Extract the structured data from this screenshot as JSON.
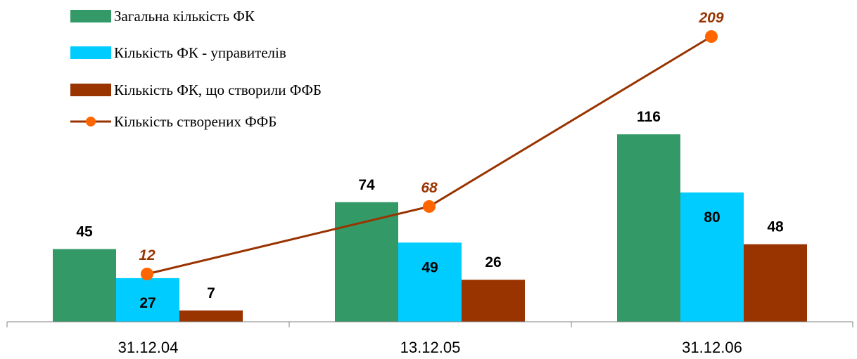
{
  "chart_data": {
    "type": "bar",
    "categories": [
      "31.12.04",
      "13.12.05",
      "31.12.06"
    ],
    "series": [
      {
        "name": "Загальна кількість ФК",
        "kind": "bar",
        "color": "#339966",
        "values": [
          45,
          74,
          116
        ]
      },
      {
        "name": "Кількість ФК - управителів",
        "kind": "bar",
        "color": "#00CCFF",
        "values": [
          27,
          49,
          80
        ]
      },
      {
        "name": "Кількість ФК, що створили ФФБ",
        "kind": "bar",
        "color": "#993300",
        "values": [
          7,
          26,
          48
        ]
      },
      {
        "name": "Кількість створених ФФБ",
        "kind": "line",
        "color": "#993300",
        "marker_color": "#FF6600",
        "label_color": "#993300",
        "values": [
          12,
          68,
          209
        ]
      }
    ],
    "title": "",
    "xlabel": "",
    "ylabel": "",
    "ylim": [
      0,
      140
    ],
    "line_ylim": [
      0,
      270
    ],
    "grid": false,
    "legend_position": "top-left"
  }
}
